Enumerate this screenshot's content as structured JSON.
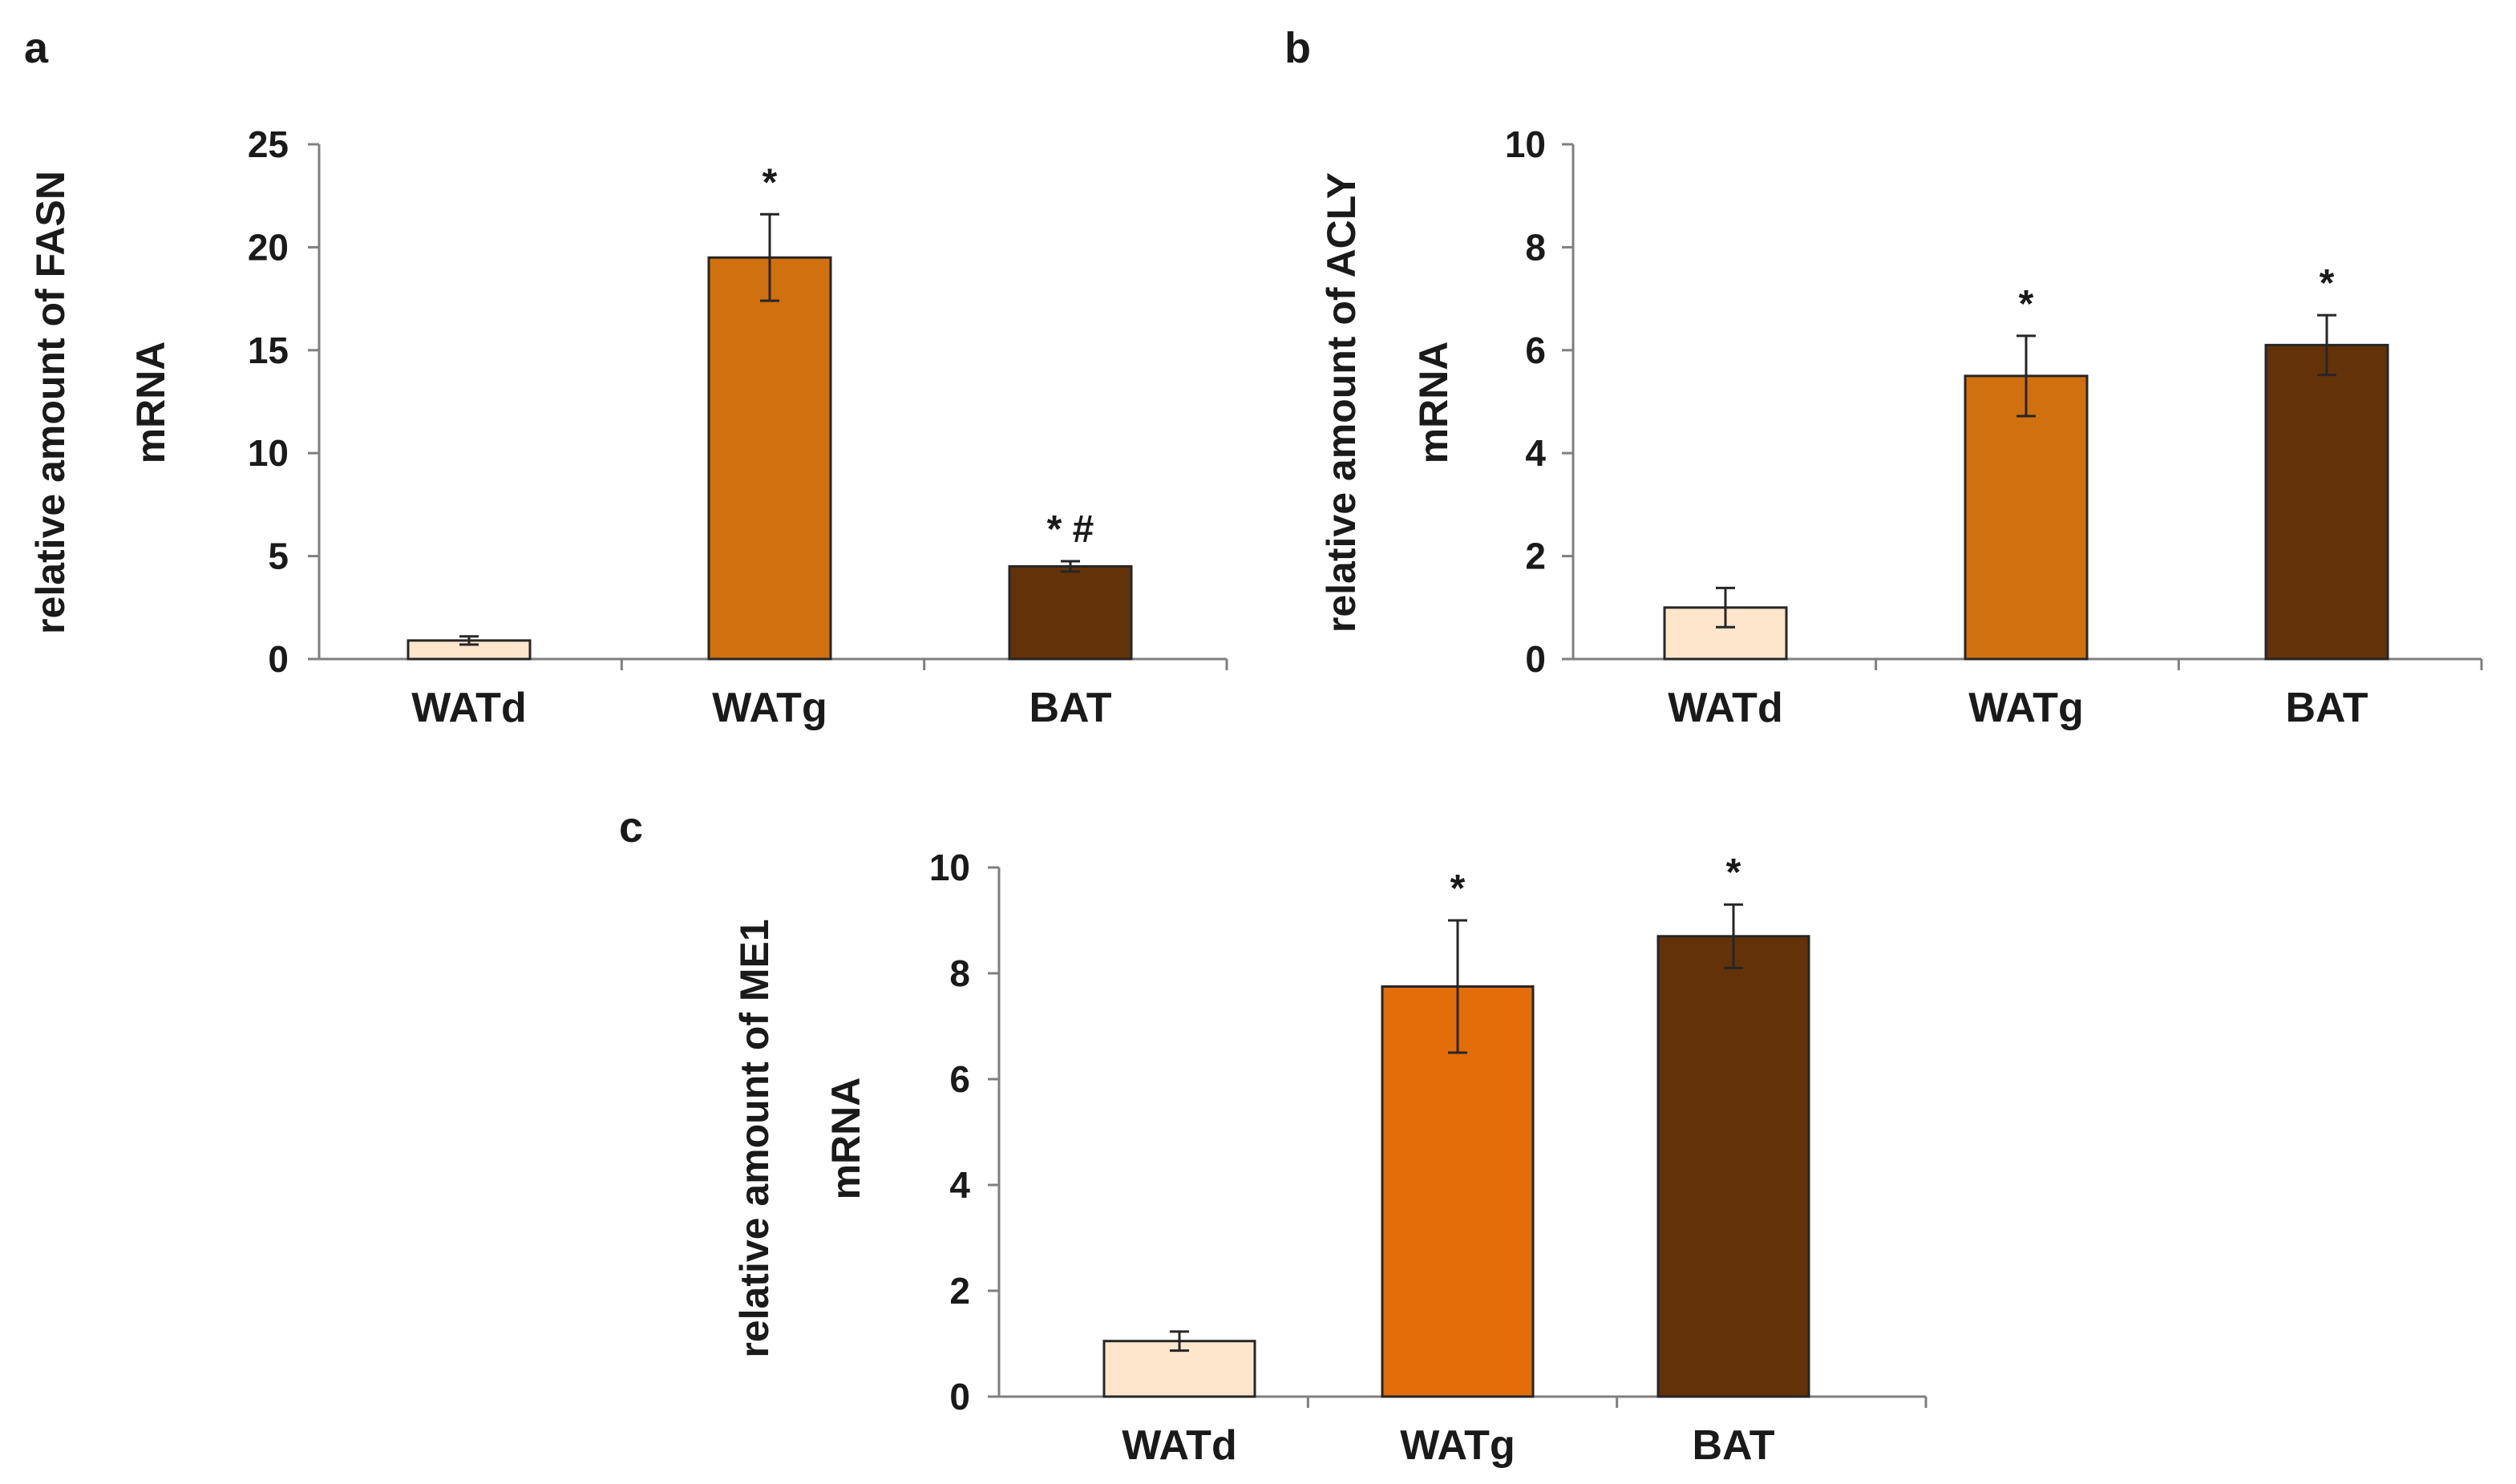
{
  "figure": {
    "panels": [
      {
        "letter": "a"
      },
      {
        "letter": "b"
      },
      {
        "letter": "c"
      }
    ]
  },
  "colors": {
    "WATd": "#fde6cc",
    "WATg_ab": "#d0700f",
    "WATg_c": "#e36d09",
    "BAT": "#643209",
    "axis": "#7f7f7f",
    "bar_border": "#262626",
    "error_bar": "#262626"
  },
  "chart_data": [
    {
      "type": "bar",
      "panel": "a",
      "title": "",
      "xlabel": "",
      "ylabel_lines": [
        "relative amount of FASN",
        "mRNA"
      ],
      "categories": [
        "WATd",
        "WATg",
        "BAT"
      ],
      "values": [
        0.9,
        19.5,
        4.5
      ],
      "errors": [
        0.2,
        2.1,
        0.25
      ],
      "significance": [
        "",
        "*",
        "* #"
      ],
      "bar_colors": [
        "#fde6cc",
        "#d0700f",
        "#643209"
      ],
      "yticks": [
        0,
        5,
        10,
        15,
        20,
        25
      ],
      "ylim": [
        0,
        25
      ],
      "grid": false
    },
    {
      "type": "bar",
      "panel": "b",
      "title": "",
      "xlabel": "",
      "ylabel_lines": [
        "relative amount of ACLY",
        "mRNA"
      ],
      "categories": [
        "WATd",
        "WATg",
        "BAT"
      ],
      "values": [
        1.0,
        5.5,
        6.1
      ],
      "errors": [
        0.38,
        0.78,
        0.58
      ],
      "significance": [
        "",
        "*",
        "*"
      ],
      "bar_colors": [
        "#fde6cc",
        "#d0700f",
        "#643209"
      ],
      "yticks": [
        0,
        2,
        4,
        6,
        8,
        10
      ],
      "ylim": [
        0,
        10
      ],
      "grid": false
    },
    {
      "type": "bar",
      "panel": "c",
      "title": "",
      "xlabel": "",
      "ylabel_lines": [
        "relative amount of  ME1",
        "mRNA"
      ],
      "categories": [
        "WATd",
        "WATg",
        "BAT"
      ],
      "values": [
        1.05,
        7.75,
        8.7
      ],
      "errors": [
        0.18,
        1.25,
        0.6
      ],
      "significance": [
        "",
        "*",
        "*"
      ],
      "bar_colors": [
        "#fde6cc",
        "#e36d09",
        "#643209"
      ],
      "yticks": [
        0,
        2,
        4,
        6,
        8,
        10
      ],
      "ylim": [
        0,
        10
      ],
      "grid": false
    }
  ]
}
